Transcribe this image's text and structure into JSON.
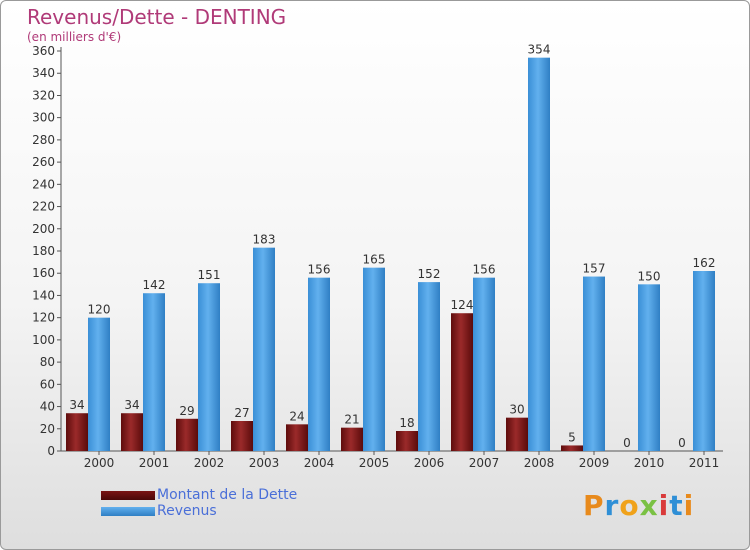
{
  "title": "Revenus/Dette - DENTING",
  "subtitle": "(en milliers d'€)",
  "logo": {
    "letters": [
      "P",
      "r",
      "o",
      "x",
      "i",
      "t",
      "i"
    ],
    "colors": [
      "#e88a1c",
      "#2f8fd6",
      "#f0a21a",
      "#7ac143",
      "#d93a3a",
      "#2f8fd6",
      "#e88a1c"
    ]
  },
  "chart_data": {
    "type": "bar",
    "categories": [
      "2000",
      "2001",
      "2002",
      "2003",
      "2004",
      "2005",
      "2006",
      "2007",
      "2008",
      "2009",
      "2010",
      "2011"
    ],
    "series": [
      {
        "name": "Montant de la Dette",
        "color": "#7a1414",
        "values": [
          34,
          34,
          29,
          27,
          24,
          21,
          18,
          124,
          30,
          5,
          0,
          0
        ]
      },
      {
        "name": "Revenus",
        "color": "#3f97dc",
        "values": [
          120,
          142,
          151,
          183,
          156,
          165,
          152,
          156,
          354,
          157,
          150,
          162
        ]
      }
    ],
    "ylim": [
      0,
      360
    ],
    "yticks": [
      "0",
      "20",
      "40",
      "60",
      "80",
      "100",
      "120",
      "140",
      "160",
      "180",
      "200",
      "220",
      "240",
      "260",
      "280",
      "300",
      "320",
      "340",
      "360"
    ],
    "grid": false,
    "legend": "bottom-left"
  }
}
